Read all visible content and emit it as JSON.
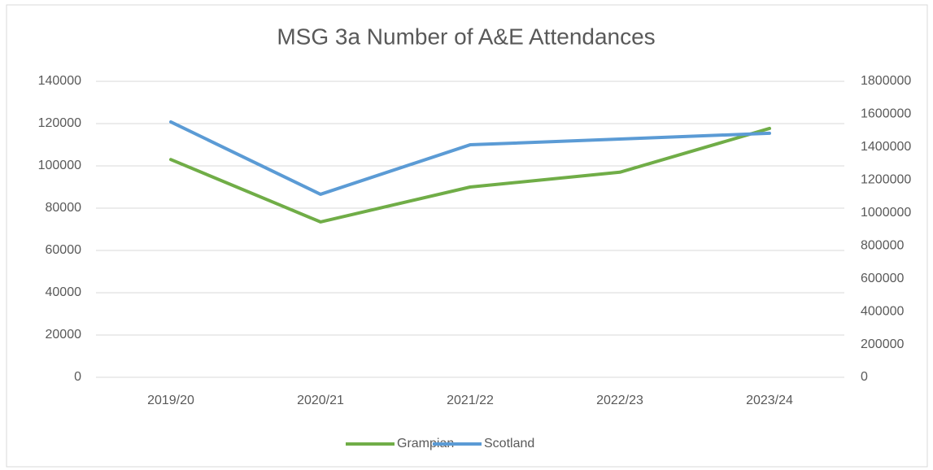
{
  "chart_data": {
    "type": "line",
    "title": "MSG 3a Number of A&E Attendances",
    "categories": [
      "2019/20",
      "2020/21",
      "2021/22",
      "2022/23",
      "2023/24"
    ],
    "series": [
      {
        "name": "Grampian",
        "color": "#70ad47",
        "values": [
          103000,
          73500,
          90000,
          97000,
          117700
        ]
      },
      {
        "name": "Scotland",
        "color": "#5b9bd5",
        "axis": "y2",
        "values": [
          1553000,
          1113000,
          1414000,
          1449000,
          1484000
        ]
      }
    ],
    "ylim": [
      0,
      140000
    ],
    "yticks": [
      0,
      20000,
      40000,
      60000,
      80000,
      100000,
      120000,
      140000
    ],
    "y2lim": [
      0,
      1800000
    ],
    "y2ticks": [
      0,
      200000,
      400000,
      600000,
      800000,
      1000000,
      1200000,
      1400000,
      1600000,
      1800000
    ],
    "grid": true,
    "legend": "bottom"
  }
}
